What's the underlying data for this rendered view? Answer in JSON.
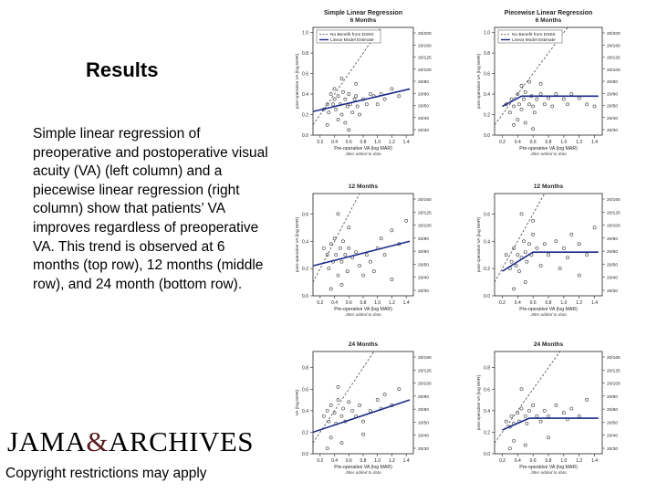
{
  "slide": {
    "title": "Results",
    "body": "Simple linear regression of preoperative and postoperative visual acuity (VA) (left column) and a piecewise linear regression (right column) show that patients’ VA improves regardless of preoperative VA. This trend is observed at 6 months (top row), 12 months (middle row), and 24 month (bottom row).",
    "logo": {
      "left": "JAMA",
      "amp": "&",
      "right": "ARCHIVES"
    },
    "copyright": "Copyright restrictions may apply"
  },
  "colors": {
    "fit": "#1a2a8a",
    "ref": "#444444",
    "point": "#333333",
    "axis": "#222222",
    "logo_amp": "#5a1b1b"
  },
  "legend": {
    "ref_label": "No Benefit from DSEK",
    "fit_label": "Linear Model Estimate"
  },
  "axis_text": {
    "x_label": "Pre-operative VA (log MAR)",
    "x_sub": "Jitter added to data",
    "y_label": "post-operative VA (log MAR)",
    "y_label_alt": "VA (log MAR)",
    "x_ticks": [
      "0.2",
      "0.4",
      "0.6",
      "0.8",
      "1.0",
      "1.2",
      "1.4"
    ],
    "y_ticks": [
      "0.0",
      "0.2",
      "0.4",
      "0.6",
      "0.8",
      "1.0"
    ],
    "y_ticks_short": [
      "0.0",
      "0.2",
      "0.4",
      "0.6",
      "0.8"
    ],
    "snellen": [
      "20/200",
      "20/160",
      "20/125",
      "20/100",
      "20/80",
      "20/60",
      "20/50",
      "20/40",
      "20/30"
    ]
  },
  "chart_data": [
    {
      "type": "scatter",
      "title": "Simple Linear Regression",
      "subtitle": "6 Months",
      "xlim": [
        0.1,
        1.5
      ],
      "ylim": [
        0,
        1.05
      ],
      "legend": true,
      "fit": [
        [
          0.1,
          0.23
        ],
        [
          1.45,
          0.45
        ]
      ],
      "points": [
        [
          0.25,
          0.25
        ],
        [
          0.3,
          0.3
        ],
        [
          0.32,
          0.22
        ],
        [
          0.35,
          0.4
        ],
        [
          0.38,
          0.3
        ],
        [
          0.4,
          0.35
        ],
        [
          0.42,
          0.25
        ],
        [
          0.45,
          0.38
        ],
        [
          0.48,
          0.3
        ],
        [
          0.5,
          0.2
        ],
        [
          0.52,
          0.42
        ],
        [
          0.55,
          0.35
        ],
        [
          0.58,
          0.28
        ],
        [
          0.6,
          0.4
        ],
        [
          0.62,
          0.3
        ],
        [
          0.65,
          0.22
        ],
        [
          0.68,
          0.35
        ],
        [
          0.7,
          0.38
        ],
        [
          0.72,
          0.28
        ],
        [
          0.75,
          0.2
        ],
        [
          0.8,
          0.35
        ],
        [
          0.85,
          0.3
        ],
        [
          0.9,
          0.4
        ],
        [
          0.95,
          0.38
        ],
        [
          1.0,
          0.3
        ],
        [
          1.05,
          0.4
        ],
        [
          1.1,
          0.35
        ],
        [
          1.2,
          0.45
        ],
        [
          1.3,
          0.38
        ],
        [
          0.55,
          0.12
        ],
        [
          0.45,
          0.15
        ],
        [
          0.6,
          0.05
        ],
        [
          0.3,
          0.1
        ],
        [
          0.5,
          0.55
        ],
        [
          0.7,
          0.5
        ],
        [
          0.4,
          0.45
        ]
      ]
    },
    {
      "type": "scatter",
      "title": "Piecewise Linear Regression",
      "subtitle": "6 Months",
      "xlim": [
        0.1,
        1.5
      ],
      "ylim": [
        0,
        1.05
      ],
      "legend": true,
      "fit": [
        [
          0.2,
          0.28
        ],
        [
          0.45,
          0.38
        ],
        [
          1.45,
          0.38
        ]
      ],
      "points": [
        [
          0.25,
          0.3
        ],
        [
          0.3,
          0.22
        ],
        [
          0.32,
          0.35
        ],
        [
          0.35,
          0.28
        ],
        [
          0.4,
          0.4
        ],
        [
          0.42,
          0.3
        ],
        [
          0.45,
          0.25
        ],
        [
          0.48,
          0.35
        ],
        [
          0.5,
          0.42
        ],
        [
          0.55,
          0.3
        ],
        [
          0.58,
          0.38
        ],
        [
          0.6,
          0.28
        ],
        [
          0.62,
          0.22
        ],
        [
          0.65,
          0.35
        ],
        [
          0.7,
          0.4
        ],
        [
          0.75,
          0.3
        ],
        [
          0.8,
          0.36
        ],
        [
          0.85,
          0.28
        ],
        [
          0.9,
          0.4
        ],
        [
          1.0,
          0.35
        ],
        [
          1.05,
          0.3
        ],
        [
          1.1,
          0.4
        ],
        [
          1.2,
          0.36
        ],
        [
          1.3,
          0.3
        ],
        [
          1.4,
          0.28
        ],
        [
          0.5,
          0.12
        ],
        [
          0.4,
          0.15
        ],
        [
          0.6,
          0.06
        ],
        [
          0.35,
          0.1
        ],
        [
          0.55,
          0.52
        ],
        [
          0.7,
          0.5
        ],
        [
          0.45,
          0.48
        ]
      ]
    },
    {
      "type": "scatter",
      "title": "",
      "subtitle": "12 Months",
      "xlim": [
        0.1,
        1.5
      ],
      "ylim": [
        0,
        0.75
      ],
      "legend": false,
      "fit": [
        [
          0.1,
          0.22
        ],
        [
          1.45,
          0.4
        ]
      ],
      "points": [
        [
          0.25,
          0.35
        ],
        [
          0.3,
          0.3
        ],
        [
          0.32,
          0.2
        ],
        [
          0.35,
          0.38
        ],
        [
          0.38,
          0.25
        ],
        [
          0.4,
          0.42
        ],
        [
          0.42,
          0.3
        ],
        [
          0.45,
          0.15
        ],
        [
          0.48,
          0.35
        ],
        [
          0.5,
          0.25
        ],
        [
          0.52,
          0.4
        ],
        [
          0.55,
          0.3
        ],
        [
          0.58,
          0.18
        ],
        [
          0.6,
          0.35
        ],
        [
          0.65,
          0.28
        ],
        [
          0.7,
          0.32
        ],
        [
          0.75,
          0.22
        ],
        [
          0.8,
          0.15
        ],
        [
          0.85,
          0.3
        ],
        [
          0.9,
          0.25
        ],
        [
          1.0,
          0.35
        ],
        [
          1.05,
          0.42
        ],
        [
          1.1,
          0.3
        ],
        [
          1.2,
          0.48
        ],
        [
          1.3,
          0.38
        ],
        [
          1.4,
          0.55
        ],
        [
          0.45,
          0.6
        ],
        [
          0.6,
          0.5
        ],
        [
          0.35,
          0.05
        ],
        [
          0.5,
          0.08
        ],
        [
          1.2,
          0.12
        ],
        [
          0.95,
          0.18
        ]
      ]
    },
    {
      "type": "scatter",
      "title": "",
      "subtitle": "12 Months",
      "xlim": [
        0.1,
        1.5
      ],
      "ylim": [
        0,
        0.75
      ],
      "legend": false,
      "fit": [
        [
          0.2,
          0.18
        ],
        [
          0.6,
          0.32
        ],
        [
          1.45,
          0.32
        ]
      ],
      "points": [
        [
          0.25,
          0.3
        ],
        [
          0.3,
          0.2
        ],
        [
          0.32,
          0.25
        ],
        [
          0.35,
          0.35
        ],
        [
          0.38,
          0.22
        ],
        [
          0.4,
          0.3
        ],
        [
          0.42,
          0.18
        ],
        [
          0.45,
          0.28
        ],
        [
          0.48,
          0.4
        ],
        [
          0.5,
          0.32
        ],
        [
          0.52,
          0.25
        ],
        [
          0.55,
          0.38
        ],
        [
          0.58,
          0.3
        ],
        [
          0.6,
          0.45
        ],
        [
          0.65,
          0.35
        ],
        [
          0.7,
          0.22
        ],
        [
          0.75,
          0.38
        ],
        [
          0.8,
          0.3
        ],
        [
          0.9,
          0.4
        ],
        [
          1.0,
          0.35
        ],
        [
          1.05,
          0.28
        ],
        [
          1.1,
          0.45
        ],
        [
          1.2,
          0.38
        ],
        [
          1.3,
          0.3
        ],
        [
          1.4,
          0.5
        ],
        [
          0.45,
          0.6
        ],
        [
          0.6,
          0.55
        ],
        [
          0.35,
          0.05
        ],
        [
          0.5,
          0.1
        ],
        [
          1.2,
          0.15
        ],
        [
          0.95,
          0.2
        ]
      ]
    },
    {
      "type": "scatter",
      "title": "",
      "subtitle": "24 Months",
      "xlim": [
        0.1,
        1.5
      ],
      "ylim": [
        0,
        0.95
      ],
      "legend": false,
      "fit": [
        [
          0.1,
          0.2
        ],
        [
          1.45,
          0.5
        ]
      ],
      "points": [
        [
          0.25,
          0.35
        ],
        [
          0.3,
          0.4
        ],
        [
          0.32,
          0.3
        ],
        [
          0.35,
          0.45
        ],
        [
          0.4,
          0.38
        ],
        [
          0.42,
          0.28
        ],
        [
          0.45,
          0.5
        ],
        [
          0.5,
          0.35
        ],
        [
          0.52,
          0.42
        ],
        [
          0.55,
          0.3
        ],
        [
          0.6,
          0.48
        ],
        [
          0.65,
          0.4
        ],
        [
          0.7,
          0.35
        ],
        [
          0.75,
          0.45
        ],
        [
          0.8,
          0.3
        ],
        [
          0.9,
          0.4
        ],
        [
          1.0,
          0.5
        ],
        [
          1.05,
          0.42
        ],
        [
          1.1,
          0.55
        ],
        [
          1.2,
          0.45
        ],
        [
          1.3,
          0.6
        ],
        [
          0.45,
          0.62
        ],
        [
          0.35,
          0.15
        ],
        [
          0.5,
          0.1
        ],
        [
          0.3,
          0.05
        ],
        [
          0.8,
          0.18
        ]
      ]
    },
    {
      "type": "scatter",
      "title": "",
      "subtitle": "24 Months",
      "xlim": [
        0.1,
        1.5
      ],
      "ylim": [
        0,
        0.95
      ],
      "legend": false,
      "fit": [
        [
          0.2,
          0.22
        ],
        [
          0.55,
          0.33
        ],
        [
          1.45,
          0.33
        ]
      ],
      "points": [
        [
          0.25,
          0.3
        ],
        [
          0.3,
          0.25
        ],
        [
          0.32,
          0.35
        ],
        [
          0.35,
          0.28
        ],
        [
          0.4,
          0.38
        ],
        [
          0.42,
          0.3
        ],
        [
          0.45,
          0.42
        ],
        [
          0.5,
          0.35
        ],
        [
          0.52,
          0.28
        ],
        [
          0.55,
          0.4
        ],
        [
          0.6,
          0.45
        ],
        [
          0.65,
          0.35
        ],
        [
          0.7,
          0.3
        ],
        [
          0.75,
          0.4
        ],
        [
          0.8,
          0.35
        ],
        [
          0.9,
          0.45
        ],
        [
          1.0,
          0.38
        ],
        [
          1.05,
          0.32
        ],
        [
          1.1,
          0.42
        ],
        [
          1.2,
          0.35
        ],
        [
          1.3,
          0.5
        ],
        [
          0.45,
          0.6
        ],
        [
          0.35,
          0.12
        ],
        [
          0.5,
          0.08
        ],
        [
          0.3,
          0.05
        ],
        [
          0.8,
          0.15
        ]
      ]
    }
  ]
}
